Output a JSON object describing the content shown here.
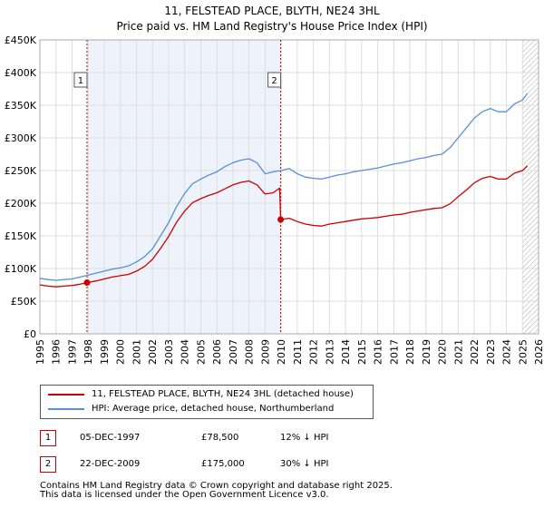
{
  "title_line1": "11, FELSTEAD PLACE, BLYTH, NE24 3HL",
  "title_line2": "Price paid vs. HM Land Registry's House Price Index (HPI)",
  "colors": {
    "property": "#cc0000",
    "hpi": "#5b8fd4",
    "marker_box": "#cc0000",
    "grid": "#dddddd",
    "shade": "#eef3fb"
  },
  "legend": {
    "property_label": "11, FELSTEAD PLACE, BLYTH, NE24 3HL (detached house)",
    "hpi_label": "HPI: Average price, detached house, Northumberland"
  },
  "sales": [
    {
      "num": "1",
      "date": "05-DEC-1997",
      "price": "£78,500",
      "hpi_diff": "12% ↓ HPI",
      "year": 1997.93,
      "value": 78500
    },
    {
      "num": "2",
      "date": "22-DEC-2009",
      "price": "£175,000",
      "hpi_diff": "30% ↓ HPI",
      "year": 2009.97,
      "value": 175000
    }
  ],
  "footer_line1": "Contains HM Land Registry data © Crown copyright and database right 2025.",
  "footer_line2": "This data is licensed under the Open Government Licence v3.0.",
  "chart_data": {
    "type": "line",
    "title": "11, FELSTEAD PLACE, BLYTH, NE24 3HL",
    "subtitle": "Price paid vs. HM Land Registry's House Price Index (HPI)",
    "xlabel": "",
    "ylabel": "",
    "xlim": [
      1995,
      2026
    ],
    "ylim": [
      0,
      450000
    ],
    "grid": true,
    "legend_position": "below",
    "x_ticks": [
      1995,
      1996,
      1997,
      1998,
      1999,
      2000,
      2001,
      2002,
      2003,
      2004,
      2005,
      2006,
      2007,
      2008,
      2009,
      2010,
      2011,
      2012,
      2013,
      2014,
      2015,
      2016,
      2017,
      2018,
      2019,
      2020,
      2021,
      2022,
      2023,
      2024,
      2025,
      2026
    ],
    "y_ticks": [
      {
        "value": 0,
        "label": "£0"
      },
      {
        "value": 50000,
        "label": "£50K"
      },
      {
        "value": 100000,
        "label": "£100K"
      },
      {
        "value": 150000,
        "label": "£150K"
      },
      {
        "value": 200000,
        "label": "£200K"
      },
      {
        "value": 250000,
        "label": "£250K"
      },
      {
        "value": 300000,
        "label": "£300K"
      },
      {
        "value": 350000,
        "label": "£350K"
      },
      {
        "value": 400000,
        "label": "£400K"
      },
      {
        "value": 450000,
        "label": "£450K"
      }
    ],
    "series": [
      {
        "name": "HPI: Average price, detached house, Northumberland",
        "x": [
          1995.0,
          1995.5,
          1996.0,
          1996.5,
          1997.0,
          1997.5,
          1998.0,
          1998.5,
          1999.0,
          1999.5,
          2000.0,
          2000.5,
          2001.0,
          2001.5,
          2002.0,
          2002.5,
          2003.0,
          2003.5,
          2004.0,
          2004.5,
          2005.0,
          2005.5,
          2006.0,
          2006.5,
          2007.0,
          2007.5,
          2008.0,
          2008.5,
          2009.0,
          2009.5,
          2010.0,
          2010.5,
          2011.0,
          2011.5,
          2012.0,
          2012.5,
          2013.0,
          2013.5,
          2014.0,
          2014.5,
          2015.0,
          2015.5,
          2016.0,
          2016.5,
          2017.0,
          2017.5,
          2018.0,
          2018.5,
          2019.0,
          2019.5,
          2020.0,
          2020.5,
          2021.0,
          2021.5,
          2022.0,
          2022.5,
          2023.0,
          2023.5,
          2024.0,
          2024.5,
          2025.0,
          2025.3
        ],
        "values": [
          85000,
          83000,
          82000,
          83000,
          84000,
          87000,
          90000,
          93000,
          96000,
          99000,
          101000,
          104000,
          110000,
          118000,
          130000,
          150000,
          170000,
          195000,
          215000,
          230000,
          237000,
          243000,
          248000,
          256000,
          262000,
          266000,
          268000,
          262000,
          245000,
          248000,
          250000,
          253000,
          245000,
          240000,
          238000,
          237000,
          240000,
          243000,
          245000,
          248000,
          250000,
          252000,
          254000,
          257000,
          260000,
          262000,
          265000,
          268000,
          270000,
          273000,
          275000,
          285000,
          300000,
          315000,
          330000,
          340000,
          345000,
          340000,
          340000,
          352000,
          358000,
          368000
        ]
      },
      {
        "name": "11, FELSTEAD PLACE, BLYTH, NE24 3HL (detached house)",
        "x": [
          1995.0,
          1995.5,
          1996.0,
          1996.5,
          1997.0,
          1997.5,
          1997.93,
          1998.5,
          1999.0,
          1999.5,
          2000.0,
          2000.5,
          2001.0,
          2001.5,
          2002.0,
          2002.5,
          2003.0,
          2003.5,
          2004.0,
          2004.5,
          2005.0,
          2005.5,
          2006.0,
          2006.5,
          2007.0,
          2007.5,
          2008.0,
          2008.5,
          2009.0,
          2009.5,
          2009.9,
          2009.97,
          2010.5,
          2011.0,
          2011.5,
          2012.0,
          2012.5,
          2013.0,
          2013.5,
          2014.0,
          2014.5,
          2015.0,
          2015.5,
          2016.0,
          2016.5,
          2017.0,
          2017.5,
          2018.0,
          2018.5,
          2019.0,
          2019.5,
          2020.0,
          2020.5,
          2021.0,
          2021.5,
          2022.0,
          2022.5,
          2023.0,
          2023.5,
          2024.0,
          2024.5,
          2025.0,
          2025.3
        ],
        "values": [
          75000,
          73000,
          72000,
          73000,
          74000,
          76000,
          78500,
          81000,
          84000,
          87000,
          89000,
          91000,
          96000,
          103000,
          114000,
          131000,
          149000,
          171000,
          188000,
          201000,
          207000,
          212000,
          216000,
          222000,
          228000,
          232000,
          234000,
          228000,
          214000,
          216000,
          223000,
          175000,
          177000,
          172000,
          168000,
          166000,
          165000,
          168000,
          170000,
          172000,
          174000,
          176000,
          177000,
          178000,
          180000,
          182000,
          183000,
          186000,
          188000,
          190000,
          192000,
          193000,
          199000,
          210000,
          220000,
          231000,
          238000,
          241000,
          237000,
          237000,
          246000,
          250000,
          257000
        ]
      }
    ],
    "annotations": [
      {
        "label": "1",
        "x": 1997.93,
        "value": 78500
      },
      {
        "label": "2",
        "x": 2009.97,
        "value": 175000
      }
    ],
    "future_region_start": 2025.0
  }
}
